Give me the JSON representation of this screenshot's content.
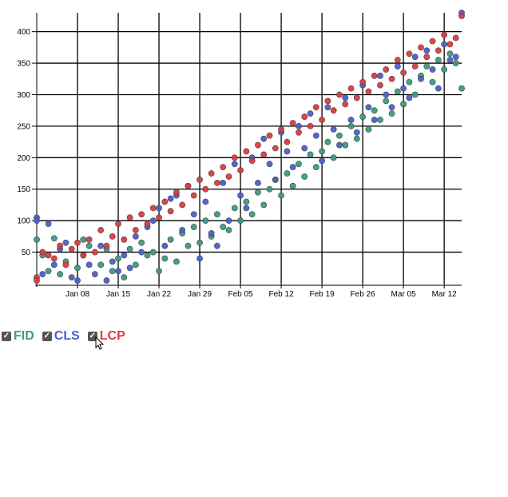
{
  "chart_data": {
    "type": "scatter",
    "x_type": "date",
    "xlim": [
      "2022-01-01",
      "2022-03-15"
    ],
    "ylim": [
      0,
      430
    ],
    "grid": true,
    "x_ticks": [
      {
        "date": "2022-01-08",
        "label": "Jan 08"
      },
      {
        "date": "2022-01-15",
        "label": "Jan 15"
      },
      {
        "date": "2022-01-22",
        "label": "Jan 22"
      },
      {
        "date": "2022-01-29",
        "label": "Jan 29"
      },
      {
        "date": "2022-02-05",
        "label": "Feb 05"
      },
      {
        "date": "2022-02-12",
        "label": "Feb 12"
      },
      {
        "date": "2022-02-19",
        "label": "Feb 19"
      },
      {
        "date": "2022-02-26",
        "label": "Feb 26"
      },
      {
        "date": "2022-03-05",
        "label": "Mar 05"
      },
      {
        "date": "2022-03-12",
        "label": "Mar 12"
      }
    ],
    "y_ticks": [
      {
        "value": 50,
        "label": "50"
      },
      {
        "value": 100,
        "label": "100"
      },
      {
        "value": 150,
        "label": "150"
      },
      {
        "value": 200,
        "label": "200"
      },
      {
        "value": 250,
        "label": "250"
      },
      {
        "value": 300,
        "label": "300"
      },
      {
        "value": 350,
        "label": "350"
      },
      {
        "value": 400,
        "label": "400"
      }
    ],
    "series": [
      {
        "name": "FID",
        "color": "#3a9c80",
        "points": [
          [
            "2022-01-01",
            70
          ],
          [
            "2022-01-02",
            45
          ],
          [
            "2022-01-03",
            20
          ],
          [
            "2022-01-04",
            72
          ],
          [
            "2022-01-05",
            15
          ],
          [
            "2022-01-06",
            35
          ],
          [
            "2022-01-08",
            25
          ],
          [
            "2022-01-09",
            70
          ],
          [
            "2022-01-10",
            60
          ],
          [
            "2022-01-12",
            30
          ],
          [
            "2022-01-13",
            55
          ],
          [
            "2022-01-14",
            20
          ],
          [
            "2022-01-15",
            40
          ],
          [
            "2022-01-16",
            10
          ],
          [
            "2022-01-17",
            55
          ],
          [
            "2022-01-18",
            30
          ],
          [
            "2022-01-19",
            65
          ],
          [
            "2022-01-20",
            45
          ],
          [
            "2022-01-21",
            50
          ],
          [
            "2022-01-22",
            20
          ],
          [
            "2022-01-23",
            40
          ],
          [
            "2022-01-24",
            70
          ],
          [
            "2022-01-25",
            35
          ],
          [
            "2022-01-26",
            80
          ],
          [
            "2022-01-27",
            60
          ],
          [
            "2022-01-28",
            90
          ],
          [
            "2022-01-29",
            65
          ],
          [
            "2022-01-30",
            100
          ],
          [
            "2022-01-31",
            75
          ],
          [
            "2022-02-01",
            110
          ],
          [
            "2022-02-02",
            90
          ],
          [
            "2022-02-03",
            85
          ],
          [
            "2022-02-04",
            120
          ],
          [
            "2022-02-05",
            100
          ],
          [
            "2022-02-06",
            130
          ],
          [
            "2022-02-07",
            110
          ],
          [
            "2022-02-08",
            145
          ],
          [
            "2022-02-09",
            125
          ],
          [
            "2022-02-10",
            150
          ],
          [
            "2022-02-11",
            165
          ],
          [
            "2022-02-12",
            140
          ],
          [
            "2022-02-13",
            175
          ],
          [
            "2022-02-14",
            155
          ],
          [
            "2022-02-15",
            190
          ],
          [
            "2022-02-16",
            170
          ],
          [
            "2022-02-17",
            205
          ],
          [
            "2022-02-18",
            185
          ],
          [
            "2022-02-19",
            210
          ],
          [
            "2022-02-20",
            225
          ],
          [
            "2022-02-21",
            200
          ],
          [
            "2022-02-22",
            235
          ],
          [
            "2022-02-23",
            220
          ],
          [
            "2022-02-24",
            250
          ],
          [
            "2022-02-25",
            230
          ],
          [
            "2022-02-26",
            265
          ],
          [
            "2022-02-27",
            245
          ],
          [
            "2022-02-28",
            275
          ],
          [
            "2022-03-01",
            260
          ],
          [
            "2022-03-02",
            290
          ],
          [
            "2022-03-03",
            270
          ],
          [
            "2022-03-04",
            305
          ],
          [
            "2022-03-05",
            285
          ],
          [
            "2022-03-06",
            320
          ],
          [
            "2022-03-07",
            300
          ],
          [
            "2022-03-08",
            330
          ],
          [
            "2022-03-09",
            345
          ],
          [
            "2022-03-10",
            320
          ],
          [
            "2022-03-11",
            355
          ],
          [
            "2022-03-12",
            340
          ],
          [
            "2022-03-13",
            365
          ],
          [
            "2022-03-14",
            350
          ],
          [
            "2022-03-15",
            310
          ]
        ]
      },
      {
        "name": "CLS",
        "color": "#4a5fcf",
        "points": [
          [
            "2022-01-01",
            105
          ],
          [
            "2022-01-01",
            100
          ],
          [
            "2022-01-02",
            15
          ],
          [
            "2022-01-03",
            95
          ],
          [
            "2022-01-04",
            30
          ],
          [
            "2022-01-05",
            55
          ],
          [
            "2022-01-06",
            65
          ],
          [
            "2022-01-07",
            10
          ],
          [
            "2022-01-08",
            5
          ],
          [
            "2022-01-09",
            45
          ],
          [
            "2022-01-10",
            30
          ],
          [
            "2022-01-11",
            15
          ],
          [
            "2022-01-12",
            60
          ],
          [
            "2022-01-13",
            5
          ],
          [
            "2022-01-14",
            35
          ],
          [
            "2022-01-15",
            20
          ],
          [
            "2022-01-16",
            45
          ],
          [
            "2022-01-17",
            25
          ],
          [
            "2022-01-18",
            75
          ],
          [
            "2022-01-19",
            50
          ],
          [
            "2022-01-20",
            90
          ],
          [
            "2022-01-21",
            100
          ],
          [
            "2022-01-22",
            120
          ],
          [
            "2022-01-23",
            60
          ],
          [
            "2022-01-24",
            135
          ],
          [
            "2022-01-25",
            140
          ],
          [
            "2022-01-26",
            85
          ],
          [
            "2022-01-27",
            155
          ],
          [
            "2022-01-28",
            110
          ],
          [
            "2022-01-29",
            40
          ],
          [
            "2022-01-30",
            130
          ],
          [
            "2022-01-31",
            80
          ],
          [
            "2022-02-01",
            60
          ],
          [
            "2022-02-02",
            160
          ],
          [
            "2022-02-03",
            100
          ],
          [
            "2022-02-04",
            190
          ],
          [
            "2022-02-05",
            140
          ],
          [
            "2022-02-06",
            120
          ],
          [
            "2022-02-07",
            200
          ],
          [
            "2022-02-08",
            160
          ],
          [
            "2022-02-09",
            230
          ],
          [
            "2022-02-10",
            190
          ],
          [
            "2022-02-11",
            165
          ],
          [
            "2022-02-12",
            240
          ],
          [
            "2022-02-13",
            210
          ],
          [
            "2022-02-14",
            185
          ],
          [
            "2022-02-15",
            250
          ],
          [
            "2022-02-16",
            215
          ],
          [
            "2022-02-17",
            270
          ],
          [
            "2022-02-18",
            235
          ],
          [
            "2022-02-19",
            195
          ],
          [
            "2022-02-20",
            280
          ],
          [
            "2022-02-21",
            245
          ],
          [
            "2022-02-22",
            220
          ],
          [
            "2022-02-23",
            295
          ],
          [
            "2022-02-24",
            260
          ],
          [
            "2022-02-25",
            240
          ],
          [
            "2022-02-26",
            315
          ],
          [
            "2022-02-27",
            280
          ],
          [
            "2022-02-28",
            260
          ],
          [
            "2022-03-01",
            330
          ],
          [
            "2022-03-02",
            300
          ],
          [
            "2022-03-03",
            280
          ],
          [
            "2022-03-04",
            345
          ],
          [
            "2022-03-05",
            310
          ],
          [
            "2022-03-06",
            295
          ],
          [
            "2022-03-07",
            360
          ],
          [
            "2022-03-08",
            325
          ],
          [
            "2022-03-09",
            370
          ],
          [
            "2022-03-10",
            340
          ],
          [
            "2022-03-11",
            310
          ],
          [
            "2022-03-12",
            380
          ],
          [
            "2022-03-13",
            355
          ],
          [
            "2022-03-14",
            360
          ],
          [
            "2022-03-15",
            430
          ]
        ]
      },
      {
        "name": "LCP",
        "color": "#e0393e",
        "points": [
          [
            "2022-01-01",
            10
          ],
          [
            "2022-01-01",
            5
          ],
          [
            "2022-01-02",
            50
          ],
          [
            "2022-01-03",
            45
          ],
          [
            "2022-01-04",
            40
          ],
          [
            "2022-01-05",
            60
          ],
          [
            "2022-01-06",
            30
          ],
          [
            "2022-01-07",
            55
          ],
          [
            "2022-01-08",
            65
          ],
          [
            "2022-01-09",
            45
          ],
          [
            "2022-01-10",
            70
          ],
          [
            "2022-01-11",
            50
          ],
          [
            "2022-01-12",
            85
          ],
          [
            "2022-01-13",
            60
          ],
          [
            "2022-01-14",
            75
          ],
          [
            "2022-01-15",
            95
          ],
          [
            "2022-01-16",
            70
          ],
          [
            "2022-01-17",
            105
          ],
          [
            "2022-01-18",
            85
          ],
          [
            "2022-01-19",
            110
          ],
          [
            "2022-01-20",
            95
          ],
          [
            "2022-01-21",
            120
          ],
          [
            "2022-01-22",
            105
          ],
          [
            "2022-01-23",
            130
          ],
          [
            "2022-01-24",
            115
          ],
          [
            "2022-01-25",
            145
          ],
          [
            "2022-01-26",
            125
          ],
          [
            "2022-01-27",
            155
          ],
          [
            "2022-01-28",
            140
          ],
          [
            "2022-01-29",
            165
          ],
          [
            "2022-01-30",
            150
          ],
          [
            "2022-01-31",
            175
          ],
          [
            "2022-02-01",
            160
          ],
          [
            "2022-02-02",
            185
          ],
          [
            "2022-02-03",
            170
          ],
          [
            "2022-02-04",
            200
          ],
          [
            "2022-02-05",
            180
          ],
          [
            "2022-02-06",
            210
          ],
          [
            "2022-02-07",
            195
          ],
          [
            "2022-02-08",
            220
          ],
          [
            "2022-02-09",
            205
          ],
          [
            "2022-02-10",
            235
          ],
          [
            "2022-02-11",
            215
          ],
          [
            "2022-02-12",
            245
          ],
          [
            "2022-02-13",
            225
          ],
          [
            "2022-02-14",
            255
          ],
          [
            "2022-02-15",
            240
          ],
          [
            "2022-02-16",
            265
          ],
          [
            "2022-02-17",
            250
          ],
          [
            "2022-02-18",
            280
          ],
          [
            "2022-02-19",
            260
          ],
          [
            "2022-02-20",
            290
          ],
          [
            "2022-02-21",
            275
          ],
          [
            "2022-02-22",
            300
          ],
          [
            "2022-02-23",
            285
          ],
          [
            "2022-02-24",
            310
          ],
          [
            "2022-02-25",
            295
          ],
          [
            "2022-02-26",
            320
          ],
          [
            "2022-02-27",
            305
          ],
          [
            "2022-02-28",
            330
          ],
          [
            "2022-03-01",
            315
          ],
          [
            "2022-03-02",
            340
          ],
          [
            "2022-03-03",
            325
          ],
          [
            "2022-03-04",
            355
          ],
          [
            "2022-03-05",
            335
          ],
          [
            "2022-03-06",
            365
          ],
          [
            "2022-03-07",
            345
          ],
          [
            "2022-03-08",
            375
          ],
          [
            "2022-03-09",
            360
          ],
          [
            "2022-03-10",
            385
          ],
          [
            "2022-03-11",
            370
          ],
          [
            "2022-03-12",
            395
          ],
          [
            "2022-03-13",
            380
          ],
          [
            "2022-03-14",
            390
          ],
          [
            "2022-03-15",
            425
          ]
        ]
      }
    ]
  },
  "legend": [
    {
      "label": "FID",
      "color": "#3a9c80",
      "checked": true
    },
    {
      "label": "CLS",
      "color": "#4a5fcf",
      "checked": true
    },
    {
      "label": "LCP",
      "color": "#e0393e",
      "checked": true
    }
  ],
  "icons": {
    "checkbox": "checkmark-icon",
    "cursor": "pointer-cursor-icon"
  }
}
